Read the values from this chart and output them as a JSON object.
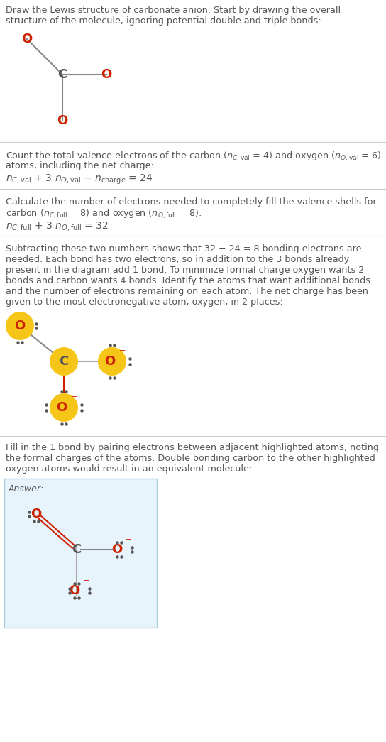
{
  "fig_width": 5.44,
  "fig_height": 10.45,
  "bg_color": "#ffffff",
  "text_color": "#555555",
  "red_color": "#cc2200",
  "atom_yellow": "#f5c518",
  "answer_box_color": "#e8f4fb",
  "sep_color": "#cccccc",
  "sections": {
    "s1_title": "Draw the Lewis structure of carbonate anion. Start by drawing the overall\nstructure of the molecule, ignoring potential double and triple bonds:",
    "s2_line1": "Count the total valence electrons of the carbon ($n_{C,\\mathrm{val}}$ = 4) and oxygen ($n_{O,\\mathrm{val}}$ = 6)",
    "s2_line2": "atoms, including the net charge:",
    "s2_eq": "$n_{C,\\mathrm{val}}$ + 3 $n_{O,\\mathrm{val}}$ − $n_{\\mathrm{charge}}$ = 24",
    "s3_line1": "Calculate the number of electrons needed to completely fill the valence shells for",
    "s3_line2": "carbon ($n_{C,\\mathrm{full}}$ = 8) and oxygen ($n_{O,\\mathrm{full}}$ = 8):",
    "s3_eq": "$n_{C,\\mathrm{full}}$ + 3 $n_{O,\\mathrm{full}}$ = 32",
    "s4_lines": [
      "Subtracting these two numbers shows that 32 − 24 = 8 bonding electrons are",
      "needed. Each bond has two electrons, so in addition to the 3 bonds already",
      "present in the diagram add 1 bond. To minimize formal charge oxygen wants 2",
      "bonds and carbon wants 4 bonds. Identify the atoms that want additional bonds",
      "and the number of electrons remaining on each atom. The net charge has been",
      "given to the most electronegative atom, oxygen, in 2 places:"
    ],
    "s5_lines": [
      "Fill in the 1 bond by pairing electrons between adjacent highlighted atoms, noting",
      "the formal charges of the atoms. Double bonding carbon to the other highlighted",
      "oxygen atoms would result in an equivalent molecule:"
    ],
    "answer_label": "Answer:"
  }
}
